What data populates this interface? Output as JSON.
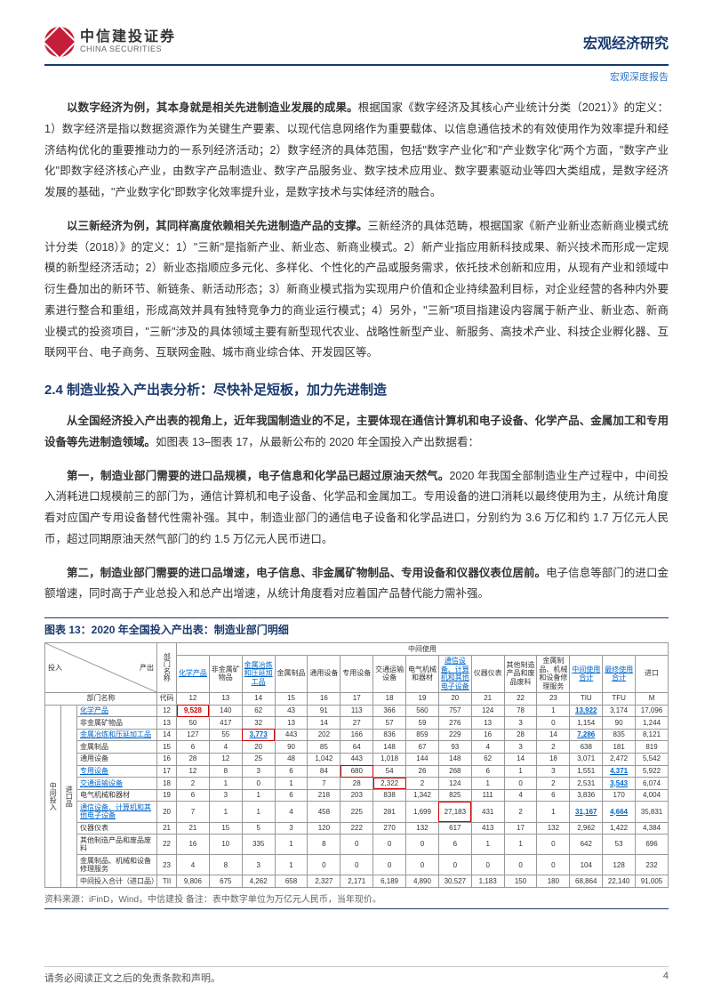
{
  "header": {
    "logo_cn": "中信建投证券",
    "logo_en": "CHINA SECURITIES",
    "right": "宏观经济研究",
    "sub": "宏观深度报告"
  },
  "para1": {
    "lead": "以数字经济为例，其本身就是相关先进制造业发展的成果。",
    "body": "根据国家《数字经济及其核心产业统计分类（2021）》的定义：1）数字经济是指以数据资源作为关键生产要素、以现代信息网络作为重要载体、以信息通信技术的有效使用作为效率提升和经济结构优化的重要推动力的一系列经济活动；2）数字经济的具体范围，包括\"数字产业化\"和\"产业数字化\"两个方面，\"数字产业化\"即数字经济核心产业，由数字产品制造业、数字产品服务业、数字技术应用业、数字要素驱动业等四大类组成，是数字经济发展的基础，\"产业数字化\"即数字化效率提升业，是数字技术与实体经济的融合。"
  },
  "para2": {
    "lead": "以三新经济为例，其同样高度依赖相关先进制造产品的支撑。",
    "body": "三新经济的具体范畴，根据国家《新产业新业态新商业模式统计分类（2018）》的定义：1）\"三新\"是指新产业、新业态、新商业模式。2）新产业指应用新科技成果、新兴技术而形成一定规模的新型经济活动；2）新业态指顺应多元化、多样化、个性化的产品或服务需求，依托技术创新和应用，从现有产业和领域中衍生叠加出的新环节、新链条、新活动形态；3）新商业模式指为实现用户价值和企业持续盈利目标，对企业经营的各种内外要素进行整合和重组，形成高效并具有独特竞争力的商业运行模式；4）另外，\"三新\"项目指建设内容属于新产业、新业态、新商业模式的投资项目，\"三新\"涉及的具体领域主要有新型现代农业、战略性新型产业、新服务、高技术产业、科技企业孵化器、互联网平台、电子商务、互联网金融、城市商业综合体、开发园区等。"
  },
  "section": "2.4 制造业投入产出表分析：尽快补足短板，加力先进制造",
  "para3": {
    "lead": "从全国经济投入产出表的视角上，近年我国制造业的不足，主要体现在通信计算机和电子设备、化学产品、金属加工和专用设备等先进制造领域。",
    "body": "如图表 13–图表 17，从最新公布的 2020 年全国投入产出数据看："
  },
  "para4": {
    "lead": "第一，制造业部门需要的进口品规模，电子信息和化学品已超过原油天然气。",
    "body": "2020 年我国全部制造业生产过程中，中间投入消耗进口规模前三的部门为，通信计算机和电子设备、化学品和金属加工。专用设备的进口消耗以最终使用为主，从统计角度看对应国产专用设备替代性需补强。其中，制造业部门的通信电子设备和化学品进口，分别约为 3.6 万亿和约 1.7 万亿元人民币，超过同期原油天然气部门的约 1.5 万亿元人民币进口。"
  },
  "para5": {
    "lead": "第二，制造业部门需要的进口品增速，电子信息、非金属矿物制品、专用设备和仪器仪表位居前。",
    "body": "电子信息等部门的进口金额增速，同时高于产业总投入和总产出增速，从统计角度看对应着国产品替代能力需补强。"
  },
  "chart": {
    "title": "图表 13：2020 年全国投入产出表：制造业部门明细",
    "source": "资料来源：iFinD，Wind，中信建投  备注：表中数字单位为万亿元人民币，当年现价。",
    "group_left": {
      "r1": "投入",
      "r2": "产出",
      "mid_use": "中间使用"
    },
    "top": {
      "dept": "部门名称",
      "code_label": "代码"
    },
    "cols": [
      {
        "label": "化学产品",
        "hl": true
      },
      {
        "label": "非金属矿物品"
      },
      {
        "label": "金属冶炼和压延加工品",
        "hl": true
      },
      {
        "label": "金属制品"
      },
      {
        "label": "通用设备"
      },
      {
        "label": "专用设备"
      },
      {
        "label": "交通运输设备"
      },
      {
        "label": "电气机械和器材"
      },
      {
        "label": "通信设备、计算机和其他电子设备",
        "hl": true
      },
      {
        "label": "仪器仪表"
      },
      {
        "label": "其他制造产品和废品废料"
      },
      {
        "label": "金属制品、机械和设备修理服务"
      },
      {
        "label": "中间使用合计",
        "hl": true
      },
      {
        "label": "最终使用合计",
        "hl": true
      },
      {
        "label": "进口"
      }
    ],
    "codes": [
      "12",
      "13",
      "14",
      "15",
      "16",
      "17",
      "18",
      "19",
      "20",
      "21",
      "22",
      "23",
      "TIU",
      "TFU",
      "M"
    ],
    "side": {
      "zhongjian": "中间投入",
      "jinkou": "进口品"
    },
    "rows": [
      {
        "name": "化学产品",
        "u": true,
        "code": "12",
        "v": [
          "9,528",
          "140",
          "62",
          "43",
          "91",
          "113",
          "366",
          "560",
          "757",
          "124",
          "78",
          "1",
          "13,922",
          "3,174",
          "17,096"
        ],
        "hl": [
          0,
          12
        ],
        "box": [
          0
        ]
      },
      {
        "name": "非金属矿物品",
        "code": "13",
        "v": [
          "50",
          "417",
          "32",
          "13",
          "14",
          "27",
          "57",
          "59",
          "276",
          "13",
          "3",
          "0",
          "1,154",
          "90",
          "1,244"
        ]
      },
      {
        "name": "金属冶炼和压延加工品",
        "u": true,
        "code": "14",
        "v": [
          "127",
          "55",
          "3,773",
          "443",
          "202",
          "166",
          "836",
          "859",
          "229",
          "16",
          "28",
          "14",
          "7,286",
          "835",
          "8,121"
        ],
        "hl": [
          2,
          12
        ],
        "box": [
          2
        ]
      },
      {
        "name": "金属制品",
        "code": "15",
        "v": [
          "6",
          "4",
          "20",
          "90",
          "85",
          "64",
          "148",
          "67",
          "93",
          "4",
          "3",
          "2",
          "638",
          "181",
          "819"
        ]
      },
      {
        "name": "通用设备",
        "code": "16",
        "v": [
          "28",
          "12",
          "25",
          "48",
          "1,042",
          "443",
          "1,018",
          "144",
          "148",
          "62",
          "14",
          "18",
          "3,071",
          "2,472",
          "5,542"
        ]
      },
      {
        "name": "专用设备",
        "u": true,
        "code": "17",
        "v": [
          "12",
          "8",
          "3",
          "6",
          "84",
          "680",
          "54",
          "26",
          "268",
          "6",
          "1",
          "3",
          "1,551",
          "4,371",
          "5,922"
        ],
        "hl": [
          13
        ],
        "box": [
          5
        ]
      },
      {
        "name": "交通运输设备",
        "u": true,
        "code": "18",
        "v": [
          "2",
          "1",
          "0",
          "1",
          "7",
          "28",
          "2,322",
          "2",
          "124",
          "1",
          "0",
          "2",
          "2,531",
          "3,543",
          "6,074"
        ],
        "hl": [
          13
        ],
        "box": [
          6
        ]
      },
      {
        "name": "电气机械和器材",
        "code": "19",
        "v": [
          "6",
          "3",
          "1",
          "6",
          "218",
          "203",
          "838",
          "1,342",
          "825",
          "111",
          "4",
          "6",
          "3,836",
          "170",
          "4,004"
        ]
      },
      {
        "name": "通信设备、计算机和其他电子设备",
        "u": true,
        "code": "20",
        "v": [
          "7",
          "1",
          "1",
          "4",
          "458",
          "225",
          "281",
          "1,699",
          "27,183",
          "431",
          "2",
          "1",
          "31,167",
          "4,664",
          "35,831"
        ],
        "hl": [
          12,
          13
        ],
        "box": [
          8
        ]
      },
      {
        "name": "仪器仪表",
        "code": "21",
        "v": [
          "21",
          "15",
          "5",
          "3",
          "120",
          "222",
          "270",
          "132",
          "617",
          "413",
          "17",
          "132",
          "2,962",
          "1,422",
          "4,384"
        ]
      },
      {
        "name": "其他制造产品和废品废料",
        "code": "22",
        "v": [
          "16",
          "10",
          "335",
          "1",
          "8",
          "0",
          "0",
          "0",
          "6",
          "1",
          "1",
          "0",
          "642",
          "53",
          "696"
        ]
      },
      {
        "name": "金属制品、机械和设备修理服务",
        "code": "23",
        "v": [
          "4",
          "8",
          "3",
          "1",
          "0",
          "0",
          "0",
          "0",
          "0",
          "0",
          "0",
          "0",
          "104",
          "128",
          "232"
        ]
      },
      {
        "name": "中间投入合计（进口品）",
        "code": "TII",
        "sum": true,
        "v": [
          "9,806",
          "675",
          "4,262",
          "658",
          "2,327",
          "2,171",
          "6,189",
          "4,890",
          "30,527",
          "1,183",
          "150",
          "180",
          "68,864",
          "22,140",
          "91,005"
        ]
      }
    ]
  },
  "footer": {
    "left": "请务必阅读正文之后的免责条款和声明。",
    "pageno": "4"
  },
  "colors": {
    "brand_navy": "#1a3a6e",
    "brand_red": "#c41e3a",
    "link_blue": "#0066cc",
    "hl_red": "#cc0000"
  }
}
